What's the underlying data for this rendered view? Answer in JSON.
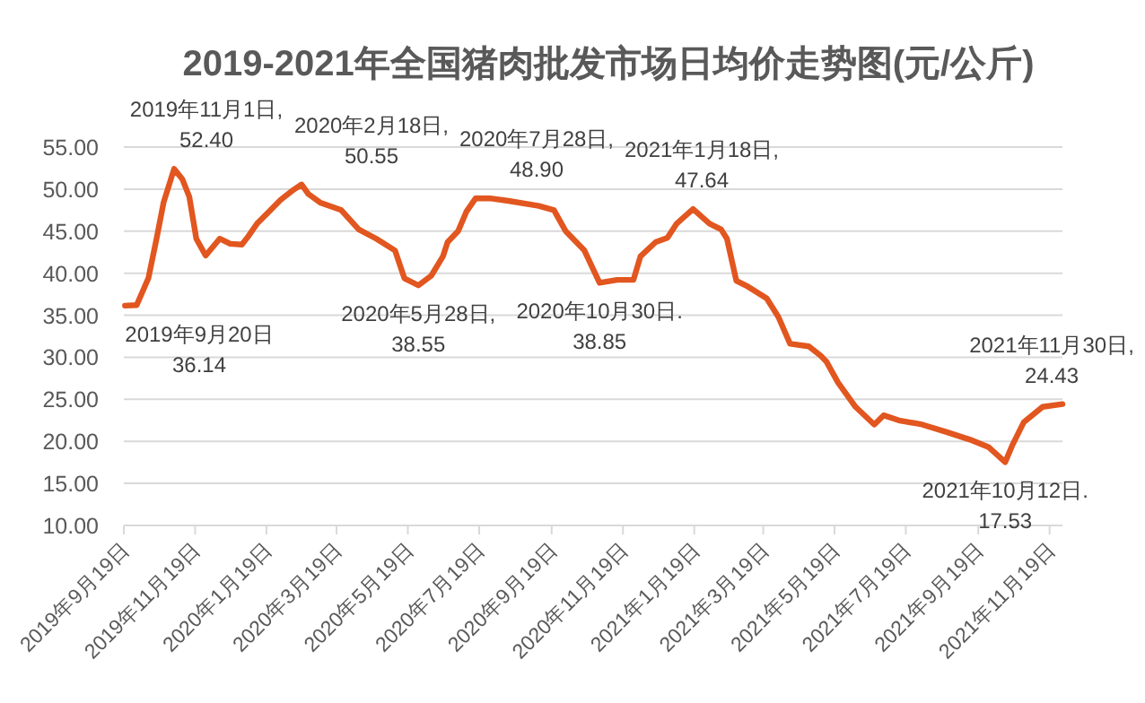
{
  "chart_data": {
    "type": "line",
    "title": "2019-2021年全国猪肉批发市场日均价走势图(元/公斤)",
    "x": [
      "2019-09-20",
      "2019-09-30",
      "2019-10-10",
      "2019-10-17",
      "2019-10-23",
      "2019-11-01",
      "2019-11-08",
      "2019-11-14",
      "2019-11-20",
      "2019-11-28",
      "2019-12-10",
      "2019-12-19",
      "2019-12-29",
      "2020-01-03",
      "2020-01-11",
      "2020-01-21",
      "2020-01-31",
      "2020-02-11",
      "2020-02-18",
      "2020-02-24",
      "2020-03-05",
      "2020-03-23",
      "2020-04-07",
      "2020-04-22",
      "2020-05-08",
      "2020-05-16",
      "2020-05-23",
      "2020-05-28",
      "2020-06-08",
      "2020-06-18",
      "2020-06-22",
      "2020-07-01",
      "2020-07-08",
      "2020-07-16",
      "2020-07-28",
      "2020-08-13",
      "2020-09-08",
      "2020-09-21",
      "2020-10-01",
      "2020-10-17",
      "2020-10-30",
      "2020-11-14",
      "2020-11-28",
      "2020-12-04",
      "2020-12-17",
      "2020-12-27",
      "2021-01-04",
      "2021-01-18",
      "2021-02-01",
      "2021-02-11",
      "2021-02-16",
      "2021-02-24",
      "2021-03-06",
      "2021-03-22",
      "2021-04-01",
      "2021-04-11",
      "2021-04-27",
      "2021-05-07",
      "2021-05-12",
      "2021-05-22",
      "2021-06-06",
      "2021-06-22",
      "2021-06-30",
      "2021-07-13",
      "2021-08-02",
      "2021-08-23",
      "2021-09-12",
      "2021-09-28",
      "2021-10-12",
      "2021-10-18",
      "2021-10-28",
      "2021-11-13",
      "2021-11-30"
    ],
    "series": [
      {
        "color": "#e2561f",
        "values": [
          36.14,
          36.2,
          39.4,
          44.1,
          48.4,
          52.4,
          51.2,
          49.1,
          44.1,
          42.1,
          44.1,
          43.5,
          43.4,
          44.3,
          45.9,
          47.3,
          48.7,
          49.9,
          50.55,
          49.4,
          48.4,
          47.5,
          45.2,
          44.1,
          42.7,
          39.4,
          38.9,
          38.55,
          39.7,
          42.0,
          43.7,
          45.0,
          47.3,
          48.9,
          48.9,
          48.6,
          48.0,
          47.5,
          45.0,
          42.7,
          38.85,
          39.2,
          39.2,
          42.0,
          43.7,
          44.2,
          45.9,
          47.64,
          45.9,
          45.2,
          44.1,
          39.1,
          38.4,
          37.0,
          34.8,
          31.6,
          31.3,
          30.2,
          29.5,
          27.0,
          24.1,
          22.0,
          23.1,
          22.5,
          22.0,
          21.1,
          20.2,
          19.3,
          17.53,
          19.5,
          22.3,
          24.1,
          24.43
        ]
      }
    ],
    "xlim": [
      "2019-09-19",
      "2021-11-30"
    ],
    "xticks": [
      {
        "value": "2019-09-19",
        "label": "2019年9月19日"
      },
      {
        "value": "2019-11-19",
        "label": "2019年11月19日"
      },
      {
        "value": "2020-01-19",
        "label": "2020年1月19日"
      },
      {
        "value": "2020-03-19",
        "label": "2020年3月19日"
      },
      {
        "value": "2020-05-19",
        "label": "2020年5月19日"
      },
      {
        "value": "2020-07-19",
        "label": "2020年7月19日"
      },
      {
        "value": "2020-09-19",
        "label": "2020年9月19日"
      },
      {
        "value": "2020-11-19",
        "label": "2020年11月19日"
      },
      {
        "value": "2021-01-19",
        "label": "2021年1月19日"
      },
      {
        "value": "2021-03-19",
        "label": "2021年3月19日"
      },
      {
        "value": "2021-05-19",
        "label": "2021年5月19日"
      },
      {
        "value": "2021-07-19",
        "label": "2021年7月19日"
      },
      {
        "value": "2021-09-19",
        "label": "2021年9月19日"
      },
      {
        "value": "2021-11-19",
        "label": "2021年11月19日"
      }
    ],
    "ylim": [
      10,
      55
    ],
    "yticks": [
      {
        "value": 10,
        "label": "10.00"
      },
      {
        "value": 15,
        "label": "15.00"
      },
      {
        "value": 20,
        "label": "20.00"
      },
      {
        "value": 25,
        "label": "25.00"
      },
      {
        "value": 30,
        "label": "30.00"
      },
      {
        "value": 35,
        "label": "35.00"
      },
      {
        "value": 40,
        "label": "40.00"
      },
      {
        "value": 45,
        "label": "45.00"
      },
      {
        "value": 50,
        "label": "50.00"
      },
      {
        "value": 55,
        "label": "55.00"
      }
    ],
    "grid": "y",
    "annotations": [
      {
        "text": "2019年9月20日\n36.14",
        "x": "2019-09-20",
        "y": 36.14
      },
      {
        "text": "2019年11月1日,\n52.40",
        "x": "2019-11-01",
        "y": 52.4
      },
      {
        "text": "2020年2月18日,\n50.55",
        "x": "2020-02-18",
        "y": 50.55
      },
      {
        "text": "2020年5月28日,\n38.55",
        "x": "2020-05-28",
        "y": 38.55
      },
      {
        "text": "2020年7月28日,\n48.90",
        "x": "2020-07-28",
        "y": 48.9
      },
      {
        "text": "2020年10月30日.\n38.85",
        "x": "2020-10-30",
        "y": 38.85
      },
      {
        "text": "2021年1月18日,\n47.64",
        "x": "2021-01-18",
        "y": 47.64
      },
      {
        "text": "2021年10月12日.\n17.53",
        "x": "2021-10-12",
        "y": 17.53
      },
      {
        "text": "2021年11月30日,\n24.43",
        "x": "2021-11-30",
        "y": 24.43
      }
    ]
  }
}
